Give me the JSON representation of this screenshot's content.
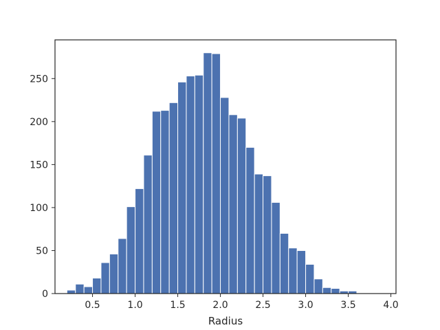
{
  "chart_data": {
    "type": "bar",
    "title": "",
    "xlabel": "Radius",
    "ylabel": "",
    "xlim": [
      0.06,
      4.06
    ],
    "ylim": [
      0,
      295
    ],
    "x_ticks": [
      0.5,
      1.0,
      1.5,
      2.0,
      2.5,
      3.0,
      3.5,
      4.0
    ],
    "x_tick_labels": [
      "0.5",
      "1.0",
      "1.5",
      "2.0",
      "2.5",
      "3.0",
      "3.5",
      "4.0"
    ],
    "y_ticks": [
      0,
      50,
      100,
      150,
      200,
      250
    ],
    "y_tick_labels": [
      "0",
      "50",
      "100",
      "150",
      "200",
      "250"
    ],
    "grid": false,
    "bar_color": "#4c72b0",
    "bin_edges": [
      0.2,
      0.3,
      0.4,
      0.5,
      0.6,
      0.7,
      0.8,
      0.9,
      1.0,
      1.1,
      1.2,
      1.3,
      1.4,
      1.5,
      1.6,
      1.7,
      1.8,
      1.9,
      2.0,
      2.1,
      2.2,
      2.3,
      2.4,
      2.5,
      2.6,
      2.7,
      2.8,
      2.9,
      3.0,
      3.1,
      3.2,
      3.3,
      3.4,
      3.5,
      3.6,
      3.7,
      3.8
    ],
    "values": [
      4,
      11,
      8,
      18,
      36,
      46,
      64,
      101,
      122,
      161,
      212,
      213,
      222,
      246,
      253,
      254,
      280,
      279,
      228,
      208,
      204,
      170,
      139,
      137,
      106,
      70,
      53,
      50,
      34,
      17,
      7,
      6,
      3,
      3,
      0,
      0
    ]
  }
}
